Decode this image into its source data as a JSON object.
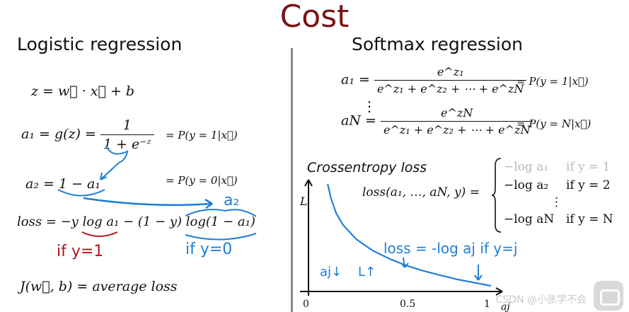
{
  "title": "Cost",
  "left": {
    "heading": "Logistic regression",
    "eq_z": "z = w⃗ · x⃗ + b",
    "eq_a1_lhs": "a₁ = g(z) =",
    "eq_a1_num": "1",
    "eq_a1_den": "1 + e⁻ᶻ",
    "eq_a1_rhs": "= P(y = 1|x⃗)",
    "eq_a2_lhs": "a₂ = 1 − a₁",
    "eq_a2_rhs": "= P(y = 0|x⃗)",
    "eq_loss": "loss = −y log a₁ − (1 − y) log(1 − a₁)",
    "anno_a2": "a₂",
    "anno_if_y1": "if y=1",
    "anno_if_y0": "if y=0",
    "eq_J": "J(w⃗, b) = average loss"
  },
  "right": {
    "heading": "Softmax regression",
    "eq_a1_lhs": "a₁ =",
    "eq_a1_num": "e^z₁",
    "eq_a1_den": "e^z₁ + e^z₂ + ⋯ + e^zN",
    "eq_a1_rhs": "= P(y = 1|x⃗)",
    "vdots": "⋮",
    "eq_aN_lhs": "aN =",
    "eq_aN_num": "e^zN",
    "eq_aN_den": "e^z₁ + e^z₂ + ⋯ + e^zN",
    "eq_aN_rhs": "= P(y = N|x⃗)",
    "crossentropy_label": "Crossentropy loss",
    "loss_func": "loss(a₁, …, aN, y) =",
    "cases": [
      {
        "expr": "−log a₁",
        "cond": "if y = 1",
        "greyed": true
      },
      {
        "expr": "−log a₂",
        "cond": "if y = 2",
        "greyed": false
      },
      {
        "expr": "⋮",
        "cond": "",
        "greyed": false
      },
      {
        "expr": "−log aN",
        "cond": "if y = N",
        "greyed": false
      }
    ]
  },
  "chart_data": {
    "type": "line",
    "xlabel": "aj",
    "ylabel": "L",
    "x_ticks": [
      "0",
      "0.5",
      "1"
    ],
    "xlim": [
      0,
      1
    ],
    "series": [
      {
        "x": [
          0.03,
          0.05,
          0.08,
          0.12,
          0.2,
          0.3,
          0.4,
          0.5,
          0.6,
          0.7,
          0.8,
          0.9,
          1.0
        ],
        "y": [
          3.5,
          3.0,
          2.5,
          2.1,
          1.6,
          1.2,
          0.92,
          0.69,
          0.51,
          0.36,
          0.22,
          0.11,
          0.0
        ]
      }
    ],
    "annotations": [
      "loss = -log aj  if y=j",
      "aj↓",
      "L↑"
    ]
  },
  "watermark": "CSDN @小张学不会",
  "colors": {
    "title": "#7a1414",
    "blue_ink": "#1f7fd6",
    "red_ink": "#b0161a",
    "divider": "#888888"
  }
}
